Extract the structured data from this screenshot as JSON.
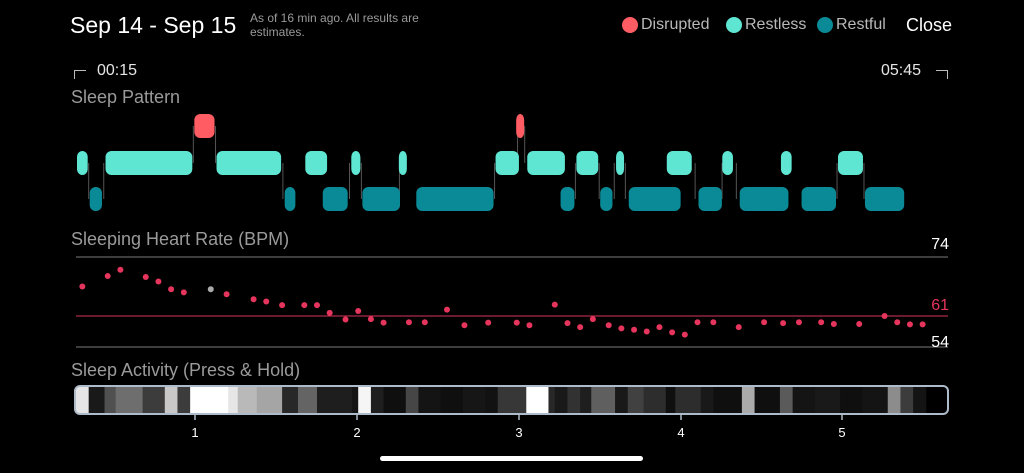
{
  "header": {
    "title": "Sep 14 - Sep 15",
    "as_of": "As of 16 min ago. All results are estimates.",
    "close_label": "Close"
  },
  "legend": [
    {
      "label": "Disrupted",
      "color": "#ff5c63"
    },
    {
      "label": "Restless",
      "color": "#5ee6d3"
    },
    {
      "label": "Restful",
      "color": "#0a8a96"
    }
  ],
  "time_range": {
    "start": "00:15",
    "end": "05:45"
  },
  "sections": {
    "pattern": "Sleep Pattern",
    "heart_rate": "Sleeping Heart Rate (BPM)",
    "activity": "Sleep Activity (Press & Hold)"
  },
  "heart_rate": {
    "top_label": "74",
    "avg_label": "61",
    "bottom_label": "54",
    "top_value": 74,
    "avg_value": 61,
    "bottom_value": 54,
    "x_range": [
      0,
      5.5
    ],
    "points": [
      [
        0.04,
        67.5
      ],
      [
        0.2,
        69.8
      ],
      [
        0.28,
        71.2
      ],
      [
        0.44,
        69.6
      ],
      [
        0.52,
        68.6
      ],
      [
        0.6,
        66.9
      ],
      [
        0.68,
        66.2
      ],
      [
        0.85,
        66.9
      ],
      [
        0.95,
        65.8
      ],
      [
        1.12,
        64.7
      ],
      [
        1.2,
        64.2
      ],
      [
        1.3,
        63.4
      ],
      [
        1.44,
        63.4
      ],
      [
        1.52,
        63.4
      ],
      [
        1.6,
        61.7
      ],
      [
        1.7,
        60.2
      ],
      [
        1.78,
        62.1
      ],
      [
        1.86,
        60.3
      ],
      [
        1.94,
        59.5
      ],
      [
        2.1,
        59.6
      ],
      [
        2.2,
        59.6
      ],
      [
        2.34,
        62.4
      ],
      [
        2.45,
        58.9
      ],
      [
        2.6,
        59.5
      ],
      [
        2.78,
        59.5
      ],
      [
        2.86,
        58.9
      ],
      [
        3.02,
        63.5
      ],
      [
        3.1,
        59.4
      ],
      [
        3.18,
        58.5
      ],
      [
        3.26,
        60.3
      ],
      [
        3.36,
        58.9
      ],
      [
        3.44,
        58.2
      ],
      [
        3.52,
        57.9
      ],
      [
        3.6,
        57.5
      ],
      [
        3.68,
        58.5
      ],
      [
        3.76,
        57.3
      ],
      [
        3.84,
        56.8
      ],
      [
        3.92,
        59.6
      ],
      [
        4.02,
        59.6
      ],
      [
        4.18,
        58.5
      ],
      [
        4.34,
        59.6
      ],
      [
        4.46,
        59.4
      ],
      [
        4.56,
        59.6
      ],
      [
        4.7,
        59.6
      ],
      [
        4.78,
        59.2
      ],
      [
        4.94,
        59.2
      ],
      [
        5.1,
        61.0
      ],
      [
        5.18,
        59.6
      ],
      [
        5.26,
        59.1
      ],
      [
        5.34,
        59.1
      ]
    ],
    "highlight_points": [
      [
        0.85,
        66.9
      ]
    ],
    "dot_color": "#e6355c",
    "highlight_color": "#aaaaaa"
  },
  "pattern": {
    "x_range": [
      0,
      5.5
    ],
    "disrupted": [
      [
        0.74,
        0.88
      ],
      [
        2.77,
        2.82
      ]
    ],
    "restless": [
      [
        0.0,
        0.08
      ],
      [
        0.18,
        0.74
      ],
      [
        0.88,
        1.3
      ],
      [
        1.44,
        1.59
      ],
      [
        1.73,
        1.8
      ],
      [
        2.03,
        2.09
      ],
      [
        2.64,
        2.8
      ],
      [
        2.84,
        3.09
      ],
      [
        3.15,
        3.3
      ],
      [
        3.4,
        3.45
      ],
      [
        3.72,
        3.89
      ],
      [
        4.07,
        4.15
      ],
      [
        4.44,
        4.52
      ],
      [
        4.8,
        4.97
      ]
    ],
    "restful": [
      [
        0.08,
        0.17
      ],
      [
        1.31,
        1.39
      ],
      [
        1.55,
        1.72
      ],
      [
        1.8,
        2.05
      ],
      [
        2.14,
        2.64
      ],
      [
        3.05,
        3.15
      ],
      [
        3.3,
        3.39
      ],
      [
        3.48,
        3.82
      ],
      [
        3.92,
        4.08
      ],
      [
        4.18,
        4.5
      ],
      [
        4.57,
        4.8
      ],
      [
        4.97,
        5.23
      ]
    ]
  },
  "activity": {
    "x_range": [
      0,
      5.5
    ],
    "axis_ticks": [
      "1",
      "2",
      "3",
      "4",
      "5"
    ],
    "axis_tick_positions": [
      1,
      2,
      3,
      4,
      5
    ],
    "frame_color": "#aebbc9",
    "segments": [
      [
        0.0,
        0.08,
        230
      ],
      [
        0.08,
        0.18,
        25
      ],
      [
        0.18,
        0.25,
        80
      ],
      [
        0.25,
        0.42,
        110
      ],
      [
        0.42,
        0.56,
        60
      ],
      [
        0.56,
        0.64,
        200
      ],
      [
        0.64,
        0.72,
        60
      ],
      [
        0.72,
        0.96,
        255
      ],
      [
        0.96,
        1.02,
        230
      ],
      [
        1.02,
        1.14,
        185
      ],
      [
        1.14,
        1.3,
        165
      ],
      [
        1.3,
        1.4,
        40
      ],
      [
        1.4,
        1.52,
        100
      ],
      [
        1.52,
        1.74,
        30
      ],
      [
        1.74,
        1.78,
        20
      ],
      [
        1.78,
        1.86,
        245
      ],
      [
        1.86,
        1.94,
        30
      ],
      [
        1.94,
        2.08,
        15
      ],
      [
        2.08,
        2.16,
        70
      ],
      [
        2.16,
        2.3,
        20
      ],
      [
        2.3,
        2.44,
        15
      ],
      [
        2.44,
        2.58,
        22
      ],
      [
        2.58,
        2.66,
        18
      ],
      [
        2.66,
        2.84,
        55
      ],
      [
        2.84,
        2.98,
        255
      ],
      [
        2.98,
        3.02,
        40
      ],
      [
        3.02,
        3.1,
        25
      ],
      [
        3.1,
        3.18,
        50
      ],
      [
        3.18,
        3.25,
        30
      ],
      [
        3.25,
        3.4,
        95
      ],
      [
        3.4,
        3.48,
        25
      ],
      [
        3.48,
        3.58,
        65
      ],
      [
        3.58,
        3.72,
        45
      ],
      [
        3.72,
        3.78,
        15
      ],
      [
        3.78,
        3.94,
        45
      ],
      [
        3.94,
        4.02,
        25
      ],
      [
        4.02,
        4.2,
        15
      ],
      [
        4.2,
        4.28,
        170
      ],
      [
        4.28,
        4.44,
        15
      ],
      [
        4.44,
        4.52,
        90
      ],
      [
        4.52,
        4.66,
        20
      ],
      [
        4.66,
        4.82,
        25
      ],
      [
        4.82,
        4.96,
        15
      ],
      [
        4.96,
        5.12,
        20
      ],
      [
        5.12,
        5.2,
        140
      ],
      [
        5.2,
        5.28,
        60
      ],
      [
        5.28,
        5.36,
        20
      ]
    ]
  }
}
